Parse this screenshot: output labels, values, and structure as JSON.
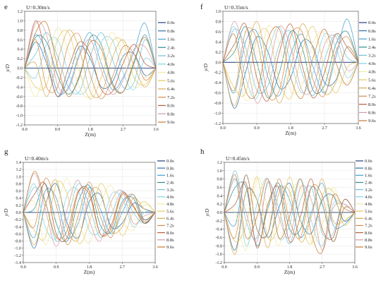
{
  "legend_times": [
    "0.0s",
    "0.8s",
    "1.6s",
    "2.4s",
    "3.2s",
    "4.0s",
    "4.8s",
    "5.6s",
    "6.4s",
    "7.2s",
    "8.0s",
    "8.8s",
    "9.6s"
  ],
  "series_colors": [
    "#1f3f7a",
    "#2d6fa8",
    "#3f9fd0",
    "#2f8c8c",
    "#6fc0d8",
    "#7fd3ea",
    "#f2e8a0",
    "#e8c85a",
    "#d7a84a",
    "#d88a4a",
    "#b85a38",
    "#d49aa0",
    "#c7782e"
  ],
  "chart_data": [
    {
      "type": "line",
      "panel_letter": "e",
      "condition": "U=0.30m/s",
      "xlabel": "Z(m)",
      "ylabel": "y/D",
      "xlim": [
        0,
        3.6
      ],
      "ylim": [
        -1.2,
        1.2
      ],
      "x_ticks": [
        "0.0",
        "0.9",
        "1.8",
        "2.7",
        "3.6"
      ],
      "y_ticks": [
        "-1.2",
        "-1.0",
        "-0.8",
        "-0.6",
        "-0.4",
        "-0.2",
        "0.0",
        "0.2",
        "0.4",
        "0.6",
        "0.8",
        "1.0",
        "1.2"
      ],
      "grid": true,
      "legend": "right",
      "x": [
        0,
        0.3,
        0.6,
        0.9,
        1.2,
        1.5,
        1.8,
        2.1,
        2.4,
        2.7,
        3.0,
        3.3,
        3.6
      ],
      "series": [
        {
          "name": "0.0s",
          "values": [
            0,
            0,
            0,
            0,
            0,
            0,
            0,
            0,
            0,
            0,
            0,
            0,
            0
          ]
        },
        {
          "name": "0.8s",
          "values": [
            0,
            0.55,
            0.1,
            -0.6,
            -0.2,
            0.45,
            0.2,
            -0.4,
            -0.3,
            0.25,
            0.3,
            -0.15,
            0
          ]
        },
        {
          "name": "1.6s",
          "values": [
            0,
            0.7,
            0.3,
            -0.5,
            -0.4,
            0.3,
            0.75,
            0.1,
            -0.45,
            -0.2,
            0.35,
            0.95,
            0
          ]
        },
        {
          "name": "2.4s",
          "values": [
            0,
            0.65,
            0.55,
            -0.15,
            -0.55,
            -0.2,
            0.65,
            0.5,
            -0.3,
            -0.5,
            0.1,
            0.7,
            0
          ]
        },
        {
          "name": "3.2s",
          "values": [
            0,
            0.3,
            0.75,
            0.25,
            -0.4,
            -0.5,
            0.25,
            0.75,
            0.2,
            -0.4,
            -0.3,
            0.6,
            0
          ]
        },
        {
          "name": "4.0s",
          "values": [
            0,
            -0.2,
            0.5,
            0.6,
            -0.1,
            -0.55,
            -0.3,
            0.55,
            0.6,
            -0.1,
            -0.45,
            0.2,
            0
          ]
        },
        {
          "name": "4.8s",
          "values": [
            0,
            -0.6,
            0.1,
            0.85,
            0.35,
            -0.4,
            -0.6,
            0.2,
            0.75,
            0.2,
            -0.4,
            -0.2,
            0
          ]
        },
        {
          "name": "5.6s",
          "values": [
            0,
            -0.4,
            -0.35,
            0.6,
            0.75,
            -0.05,
            -0.65,
            -0.2,
            0.55,
            0.55,
            -0.2,
            -0.35,
            0
          ]
        },
        {
          "name": "6.4s",
          "values": [
            0,
            0.1,
            -0.6,
            0.15,
            0.8,
            0.4,
            -0.5,
            -0.55,
            0.2,
            0.6,
            0.05,
            -0.4,
            0
          ]
        },
        {
          "name": "7.2s",
          "values": [
            0,
            0.6,
            -0.4,
            -0.4,
            0.5,
            0.7,
            -0.15,
            -0.65,
            -0.2,
            0.45,
            0.3,
            -0.25,
            0
          ]
        },
        {
          "name": "8.0s",
          "values": [
            0,
            1.0,
            0.2,
            -0.6,
            0.0,
            0.55,
            0.3,
            -0.45,
            -0.5,
            0.1,
            0.5,
            0.1,
            0
          ]
        },
        {
          "name": "8.8s",
          "values": [
            0,
            0.95,
            0.7,
            -0.35,
            -0.45,
            0.25,
            0.6,
            -0.05,
            -0.55,
            -0.25,
            0.4,
            0.45,
            0
          ]
        },
        {
          "name": "9.6s",
          "values": [
            0,
            0.75,
            0.95,
            0.05,
            -0.6,
            -0.15,
            0.55,
            0.4,
            -0.35,
            -0.5,
            0.15,
            0.65,
            0
          ]
        }
      ]
    },
    {
      "type": "line",
      "panel_letter": "f",
      "condition": "U=0.35m/s",
      "xlabel": "Z(m)",
      "ylabel": "y/D",
      "xlim": [
        0,
        3.6
      ],
      "ylim": [
        -1.2,
        1.0
      ],
      "x_ticks": [
        "0.0",
        "0.9",
        "1.8",
        "2.7",
        "3.6"
      ],
      "y_ticks": [
        "-1.2",
        "-1.0",
        "-0.8",
        "-0.6",
        "-0.4",
        "-0.2",
        "0.0",
        "0.2",
        "0.4",
        "0.6",
        "0.8",
        "1.0"
      ],
      "grid": true,
      "legend": "right",
      "x": [
        0,
        0.3,
        0.6,
        0.9,
        1.2,
        1.5,
        1.8,
        2.1,
        2.4,
        2.7,
        3.0,
        3.3,
        3.6
      ],
      "series": [
        {
          "name": "0.0s",
          "values": [
            0,
            0,
            0,
            0,
            0,
            0,
            0,
            0,
            0,
            0,
            0,
            0,
            0
          ]
        },
        {
          "name": "0.8s",
          "values": [
            0,
            -0.9,
            -0.2,
            0.5,
            0.2,
            -0.5,
            -0.3,
            0.4,
            0.3,
            -0.4,
            -0.35,
            0.3,
            0
          ]
        },
        {
          "name": "1.6s",
          "values": [
            0,
            -0.6,
            0.4,
            0.6,
            -0.3,
            -0.65,
            0.15,
            0.55,
            -0.1,
            -0.6,
            0.1,
            0.85,
            0
          ]
        },
        {
          "name": "2.4s",
          "values": [
            0,
            0.2,
            0.7,
            0.0,
            -0.7,
            -0.2,
            0.6,
            0.3,
            -0.55,
            -0.45,
            0.35,
            0.6,
            0
          ]
        },
        {
          "name": "3.2s",
          "values": [
            0,
            0.65,
            0.3,
            -0.55,
            -0.45,
            0.35,
            0.6,
            -0.2,
            -0.65,
            0.05,
            0.55,
            0.1,
            0
          ]
        },
        {
          "name": "4.0s",
          "values": [
            0,
            0.7,
            -0.3,
            -0.7,
            0.2,
            0.7,
            0.0,
            -0.6,
            -0.2,
            0.55,
            0.3,
            -0.3,
            0
          ]
        },
        {
          "name": "4.8s",
          "values": [
            0,
            0.2,
            -0.75,
            -0.2,
            0.7,
            0.35,
            -0.55,
            -0.45,
            0.4,
            0.55,
            -0.25,
            -0.4,
            0
          ]
        },
        {
          "name": "5.6s",
          "values": [
            0,
            -0.5,
            -0.6,
            0.45,
            0.6,
            -0.35,
            -0.7,
            0.2,
            0.7,
            -0.1,
            -0.6,
            -0.1,
            0
          ]
        },
        {
          "name": "6.4s",
          "values": [
            0,
            -0.85,
            0.05,
            0.8,
            -0.1,
            -0.8,
            -0.1,
            0.75,
            0.25,
            -0.6,
            -0.4,
            0.3,
            0
          ]
        },
        {
          "name": "7.2s",
          "values": [
            0,
            -0.55,
            0.6,
            0.45,
            -0.65,
            -0.55,
            0.5,
            0.6,
            -0.35,
            -0.65,
            0.2,
            0.5,
            0
          ]
        },
        {
          "name": "8.0s",
          "values": [
            0,
            0.35,
            0.75,
            -0.3,
            -0.75,
            0.2,
            0.75,
            -0.05,
            -0.7,
            -0.2,
            0.55,
            0.3,
            0
          ]
        },
        {
          "name": "8.8s",
          "values": [
            0,
            0.8,
            0.1,
            -0.8,
            -0.2,
            0.7,
            0.3,
            -0.55,
            -0.5,
            0.35,
            0.5,
            -0.15,
            0
          ]
        },
        {
          "name": "9.6s",
          "values": [
            0,
            0.55,
            -0.55,
            -0.6,
            0.45,
            0.65,
            -0.3,
            -0.7,
            0.1,
            0.65,
            0.0,
            -0.45,
            0
          ]
        }
      ]
    },
    {
      "type": "line",
      "panel_letter": "g",
      "condition": "U=0.40m/s",
      "xlabel": "Z(m)",
      "ylabel": "y/D",
      "xlim": [
        0,
        3.6
      ],
      "ylim": [
        -1.4,
        1.4
      ],
      "x_ticks": [
        "0.0",
        "0.9",
        "1.8",
        "2.7",
        "3.6"
      ],
      "y_ticks": [
        "-1.4",
        "-1.2",
        "-1.0",
        "-0.8",
        "-0.6",
        "-0.4",
        "-0.2",
        "0.0",
        "0.2",
        "0.4",
        "0.6",
        "0.8",
        "1.0",
        "1.2",
        "1.4"
      ],
      "grid": true,
      "legend": "right",
      "x": [
        0,
        0.3,
        0.6,
        0.9,
        1.2,
        1.5,
        1.8,
        2.1,
        2.4,
        2.7,
        3.0,
        3.3,
        3.6
      ],
      "series": [
        {
          "name": "0.0s",
          "values": [
            0,
            0,
            0,
            0,
            0,
            0,
            0,
            0,
            0,
            0,
            0,
            0,
            0
          ]
        },
        {
          "name": "0.8s",
          "values": [
            0,
            -1.0,
            0.2,
            0.8,
            -0.3,
            -0.7,
            0.3,
            0.5,
            -0.4,
            -0.3,
            0.25,
            0.1,
            0
          ]
        },
        {
          "name": "1.6s",
          "values": [
            0,
            -0.7,
            0.6,
            0.4,
            -0.7,
            -0.3,
            0.7,
            0.1,
            -0.6,
            0.0,
            0.5,
            -0.2,
            0
          ]
        },
        {
          "name": "2.4s",
          "values": [
            0,
            0.1,
            0.8,
            -0.3,
            -0.8,
            0.3,
            0.75,
            -0.35,
            -0.55,
            0.3,
            0.4,
            -0.3,
            0
          ]
        },
        {
          "name": "3.2s",
          "values": [
            0,
            0.7,
            0.3,
            -0.8,
            -0.2,
            0.8,
            0.2,
            -0.7,
            -0.1,
            0.6,
            0.0,
            -0.3,
            0
          ]
        },
        {
          "name": "4.0s",
          "values": [
            0,
            0.8,
            -0.4,
            -0.7,
            0.5,
            0.6,
            -0.5,
            -0.5,
            0.5,
            0.4,
            -0.4,
            0.0,
            0
          ]
        },
        {
          "name": "4.8s",
          "values": [
            0,
            0.3,
            -0.9,
            0.1,
            0.95,
            -0.2,
            -0.85,
            0.2,
            0.75,
            -0.2,
            -0.5,
            0.2,
            0
          ]
        },
        {
          "name": "5.6s",
          "values": [
            0,
            -0.5,
            -0.7,
            0.8,
            0.5,
            -0.85,
            -0.3,
            0.8,
            0.2,
            -0.65,
            0.0,
            0.3,
            0
          ]
        },
        {
          "name": "6.4s",
          "values": [
            0,
            -0.9,
            0.2,
            0.9,
            -0.45,
            -0.75,
            0.5,
            0.6,
            -0.5,
            -0.4,
            0.4,
            0.1,
            0
          ]
        },
        {
          "name": "7.2s",
          "values": [
            0,
            -0.4,
            0.95,
            0.2,
            -0.9,
            -0.1,
            0.85,
            -0.1,
            -0.7,
            0.2,
            0.5,
            -0.25,
            0
          ]
        },
        {
          "name": "8.0s",
          "values": [
            0,
            0.5,
            0.8,
            -0.6,
            -0.7,
            0.55,
            0.6,
            -0.6,
            -0.35,
            0.55,
            0.2,
            -0.3,
            0
          ]
        },
        {
          "name": "8.8s",
          "values": [
            0,
            1.1,
            0.1,
            -0.95,
            0.1,
            0.9,
            -0.2,
            -0.8,
            0.3,
            0.6,
            -0.3,
            -0.1,
            0
          ]
        },
        {
          "name": "9.6s",
          "values": [
            0,
            1.15,
            0.3,
            -0.7,
            -0.5,
            0.6,
            0.5,
            -0.6,
            -0.45,
            0.5,
            0.15,
            -0.2,
            0
          ]
        }
      ]
    },
    {
      "type": "line",
      "panel_letter": "h",
      "condition": "U=0.45m/s",
      "xlabel": "Z(m)",
      "ylabel": "y/D",
      "xlim": [
        0,
        3.6
      ],
      "ylim": [
        -1.2,
        1.2
      ],
      "x_ticks": [
        "0.0",
        "0.9",
        "1.8",
        "2.7",
        "3.6"
      ],
      "y_ticks": [
        "-1.2",
        "-1.0",
        "-0.8",
        "-0.6",
        "-0.4",
        "-0.2",
        "0.0",
        "0.2",
        "0.4",
        "0.6",
        "0.8",
        "1.0",
        "1.2"
      ],
      "grid": true,
      "legend": "right",
      "x": [
        0,
        0.3,
        0.6,
        0.9,
        1.2,
        1.5,
        1.8,
        2.1,
        2.4,
        2.7,
        3.0,
        3.3,
        3.6
      ],
      "series": [
        {
          "name": "0.0s",
          "values": [
            0,
            0,
            0,
            0,
            0,
            0,
            0,
            0,
            0,
            0,
            0,
            0,
            0
          ]
        },
        {
          "name": "0.8s",
          "values": [
            0,
            -0.9,
            0.5,
            0.3,
            -0.6,
            0.1,
            0.7,
            -0.2,
            -0.5,
            0.3,
            0.4,
            -0.2,
            0
          ]
        },
        {
          "name": "1.6s",
          "values": [
            0,
            -0.3,
            0.9,
            -0.4,
            -0.5,
            0.6,
            0.3,
            -0.6,
            0.0,
            0.7,
            -0.3,
            -0.3,
            0
          ]
        },
        {
          "name": "2.4s",
          "values": [
            0,
            0.6,
            0.6,
            -0.8,
            0.1,
            0.7,
            -0.4,
            -0.4,
            0.6,
            0.2,
            -0.7,
            0.1,
            0
          ]
        },
        {
          "name": "3.2s",
          "values": [
            0,
            1.0,
            -0.2,
            -0.6,
            0.7,
            0.1,
            -0.75,
            0.3,
            0.6,
            -0.5,
            -0.5,
            0.3,
            0
          ]
        },
        {
          "name": "4.0s",
          "values": [
            0,
            0.8,
            -0.8,
            0.2,
            0.8,
            -0.6,
            -0.3,
            0.8,
            -0.2,
            -0.8,
            0.2,
            0.2,
            0
          ]
        },
        {
          "name": "4.8s",
          "values": [
            0,
            0.0,
            -0.9,
            0.8,
            0.1,
            -0.8,
            0.4,
            0.6,
            -0.7,
            -0.3,
            0.6,
            -0.1,
            0
          ]
        },
        {
          "name": "5.6s",
          "values": [
            0,
            -0.7,
            -0.3,
            0.85,
            -0.6,
            -0.3,
            0.85,
            -0.2,
            -0.75,
            0.4,
            0.5,
            -0.3,
            0
          ]
        },
        {
          "name": "6.4s",
          "values": [
            0,
            -1.0,
            0.5,
            0.3,
            -0.85,
            0.45,
            0.5,
            -0.7,
            -0.1,
            0.8,
            -0.2,
            -0.2,
            0
          ]
        },
        {
          "name": "7.2s",
          "values": [
            0,
            -0.6,
            0.9,
            -0.4,
            -0.5,
            0.8,
            -0.2,
            -0.6,
            0.6,
            0.4,
            -0.7,
            0.1,
            0
          ]
        },
        {
          "name": "8.0s",
          "values": [
            0,
            0.2,
            0.7,
            -0.85,
            0.2,
            0.6,
            -0.7,
            -0.1,
            0.8,
            -0.4,
            -0.6,
            0.3,
            0
          ]
        },
        {
          "name": "8.8s",
          "values": [
            0,
            0.8,
            0.0,
            -0.7,
            0.75,
            -0.1,
            -0.6,
            0.6,
            0.3,
            -0.9,
            0.1,
            0.2,
            0
          ]
        },
        {
          "name": "9.6s",
          "values": [
            0,
            0.9,
            -0.6,
            -0.1,
            0.8,
            -0.6,
            -0.1,
            0.8,
            -0.5,
            -0.95,
            0.4,
            0.1,
            0
          ]
        }
      ]
    }
  ]
}
